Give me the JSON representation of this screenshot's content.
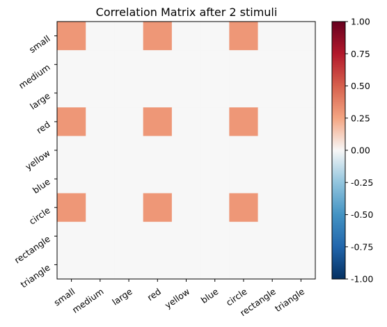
{
  "chart_data": {
    "type": "heatmap",
    "title": "Correlation Matrix after 2 stimuli",
    "xlabel": "",
    "ylabel": "",
    "x_categories": [
      "small",
      "medium",
      "large",
      "red",
      "yellow",
      "blue",
      "circle",
      "rectangle",
      "triangle"
    ],
    "y_categories": [
      "small",
      "medium",
      "large",
      "red",
      "yellow",
      "blue",
      "circle",
      "rectangle",
      "triangle"
    ],
    "values": [
      [
        0.3,
        0,
        0,
        0.3,
        0,
        0,
        0.3,
        0,
        0
      ],
      [
        0,
        0,
        0,
        0,
        0,
        0,
        0,
        0,
        0
      ],
      [
        0,
        0,
        0,
        0,
        0,
        0,
        0,
        0,
        0
      ],
      [
        0.3,
        0,
        0,
        0.3,
        0,
        0,
        0.3,
        0,
        0
      ],
      [
        0,
        0,
        0,
        0,
        0,
        0,
        0,
        0,
        0
      ],
      [
        0,
        0,
        0,
        0,
        0,
        0,
        0,
        0,
        0
      ],
      [
        0.3,
        0,
        0,
        0.3,
        0,
        0,
        0.3,
        0,
        0
      ],
      [
        0,
        0,
        0,
        0,
        0,
        0,
        0,
        0,
        0
      ],
      [
        0,
        0,
        0,
        0,
        0,
        0,
        0,
        0,
        0
      ]
    ],
    "colorbar": {
      "colormap": "RdBu_r",
      "range": [
        -1.0,
        1.0
      ],
      "ticks": [
        "-1.00",
        "-0.75",
        "-0.50",
        "-0.25",
        "0.00",
        "0.25",
        "0.50",
        "0.75",
        "1.00"
      ],
      "tick_values": [
        -1.0,
        -0.75,
        -0.5,
        -0.25,
        0.0,
        0.25,
        0.5,
        0.75,
        1.0
      ]
    },
    "grid": false
  }
}
